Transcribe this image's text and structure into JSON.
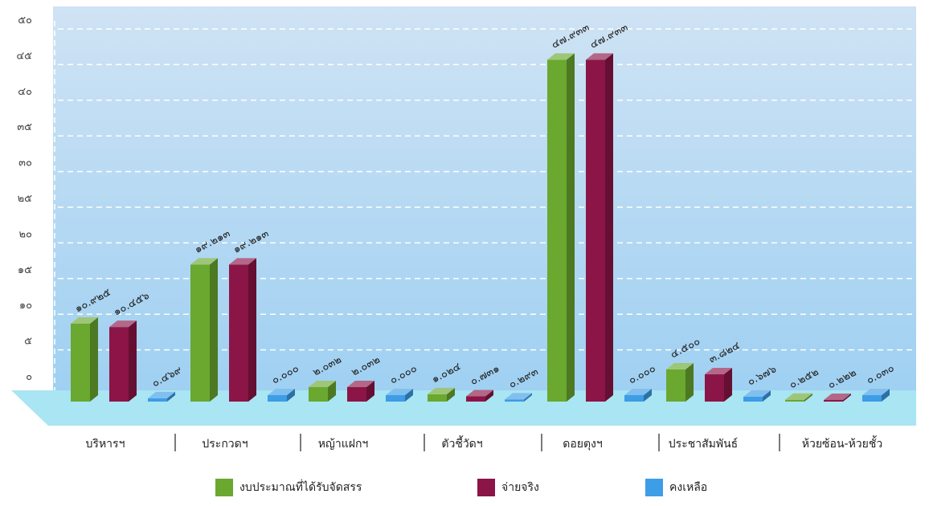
{
  "colors": {
    "background_top": "#cfe3f4",
    "background_bottom": "#9fd0f2",
    "floor": "#a9e5f3",
    "series": [
      "#6aa82f",
      "#8c1547",
      "#3d9de6"
    ]
  },
  "chart_data": {
    "type": "bar",
    "title": "",
    "xlabel": "",
    "ylabel": "",
    "ylim": [
      0,
      50
    ],
    "y_ticks": [
      0,
      5,
      10,
      15,
      20,
      25,
      30,
      35,
      40,
      45,
      50
    ],
    "y_tick_labels": [
      "๐",
      "๕",
      "๑๐",
      "๑๕",
      "๒๐",
      "๒๕",
      "๓๐",
      "๓๕",
      "๔๐",
      "๔๕",
      "๕๐"
    ],
    "grid": true,
    "legend": "bottom",
    "categories": [
      "บริหารฯ",
      "ประกวดฯ",
      "หญ้าแฝกฯ",
      "ตัวชี้วัดฯ",
      "ดอยตุงฯ",
      "ประชาสัมพันธ์",
      "ห้วยซ้อน-ห้วยชั้ว"
    ],
    "series": [
      {
        "name": "งบประมาณที่ได้รับจัดสรร",
        "values": [
          10.925,
          19.213,
          2.032,
          1.024,
          47.933,
          4.5,
          0.252
        ],
        "labels": [
          "๑๐.๙๒๕",
          "๑๙.๒๑๓",
          "๒.๐๓๒",
          "๑.๐๒๔",
          "๔๗.๙๓๓",
          "๔.๕๐๐",
          "๐.๒๕๒"
        ]
      },
      {
        "name": "จ่ายจริง",
        "values": [
          10.456,
          19.213,
          2.032,
          0.731,
          47.933,
          3.824,
          0.222
        ],
        "labels": [
          "๑๐.๔๕๖",
          "๑๙.๒๑๓",
          "๒.๐๓๒",
          "๐.๗๓๑",
          "๔๗.๙๓๓",
          "๓.๘๒๔",
          "๐.๒๒๒"
        ]
      },
      {
        "name": "คงเหลือ",
        "values": [
          0.469,
          0.0,
          0.0,
          0.293,
          0.0,
          0.676,
          0.03
        ],
        "labels": [
          "๐.๔๖๙",
          "๐.๐๐๐",
          "๐.๐๐๐",
          "๐.๒๙๓",
          "๐.๐๐๐",
          "๐.๖๗๖",
          "๐.๐๓๐"
        ]
      }
    ]
  }
}
